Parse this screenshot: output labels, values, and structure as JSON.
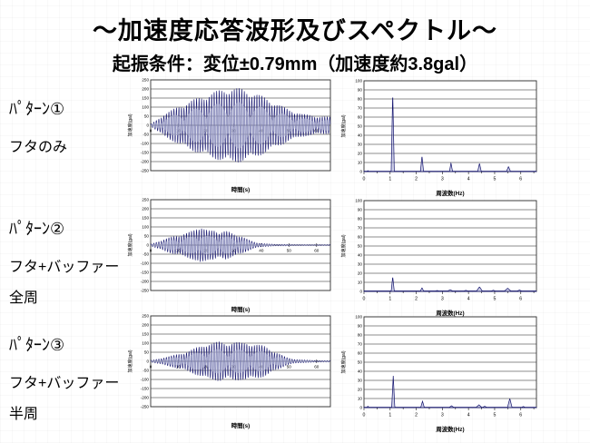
{
  "page": {
    "title": "～加速度応答波形及びスペクトル～",
    "subtitle": "起振条件：変位±0.79mm（加速度約3.8gal）"
  },
  "rows": [
    {
      "pattern": "ﾊﾟﾀｰﾝ①",
      "lines": [
        "フタのみ"
      ]
    },
    {
      "pattern": "ﾊﾟﾀｰﾝ②",
      "lines": [
        "フタ+バッファー",
        "全周"
      ]
    },
    {
      "pattern": "ﾊﾟﾀｰﾝ③",
      "lines": [
        "フタ+バッファー",
        "半周"
      ]
    }
  ],
  "colors": {
    "series_stroke": "#14146e",
    "series_fill": "#9da2cf",
    "inner_fill": "#bcbfdd",
    "grid": "#666666",
    "axis": "#333333",
    "text": "#000000"
  },
  "chart_data": [
    {
      "type": "line",
      "kind": "waveform",
      "row": 1,
      "title": "",
      "xlabel": "時間(s)",
      "ylabel": "加速度(gal)",
      "xlim": [
        0,
        65
      ],
      "ylim": [
        -250,
        250
      ],
      "xticks": [
        0,
        10,
        20,
        30,
        40,
        50,
        60
      ],
      "yticks": [
        -250,
        -200,
        -150,
        -100,
        -50,
        0,
        50,
        100,
        150,
        200,
        250
      ],
      "grid": "horizontal",
      "carrier_freq_hz": 1.1,
      "beat_period_s": 8,
      "envelope_gal": [
        [
          0,
          5
        ],
        [
          5,
          62
        ],
        [
          10,
          105
        ],
        [
          15,
          140
        ],
        [
          20,
          170
        ],
        [
          25,
          196
        ],
        [
          29,
          210
        ],
        [
          33,
          203
        ],
        [
          37,
          183
        ],
        [
          41,
          158
        ],
        [
          45,
          125
        ],
        [
          50,
          88
        ],
        [
          55,
          62
        ],
        [
          60,
          50
        ],
        [
          65,
          45
        ]
      ]
    },
    {
      "type": "line",
      "kind": "spectrum",
      "row": 1,
      "title": "",
      "xlabel": "周波数(Hz)",
      "ylabel": "加速度(gal)",
      "xlim": [
        0,
        6.6
      ],
      "ylim": [
        0,
        100
      ],
      "xticks": [
        0,
        1,
        2,
        3,
        4,
        5,
        6
      ],
      "yticks": [
        0,
        10,
        20,
        30,
        40,
        50,
        60,
        70,
        80,
        90,
        100
      ],
      "grid": "horizontal",
      "baseline": 0.4,
      "peaks_hz_gal_width": [
        [
          0.15,
          1,
          0.05
        ],
        [
          1.1,
          87,
          0.06
        ],
        [
          2.22,
          17,
          0.06
        ],
        [
          3.33,
          9.5,
          0.06
        ],
        [
          4.42,
          9,
          0.07
        ],
        [
          5.53,
          5.5,
          0.08
        ]
      ]
    },
    {
      "type": "line",
      "kind": "waveform",
      "row": 2,
      "title": "",
      "xlabel": "時間(s)",
      "ylabel": "加速度(gal)",
      "xlim": [
        0,
        65
      ],
      "ylim": [
        -250,
        250
      ],
      "xticks": [
        0,
        10,
        20,
        30,
        40,
        50,
        60
      ],
      "yticks": [
        -250,
        -200,
        -150,
        -100,
        -50,
        0,
        50,
        100,
        150,
        200,
        250
      ],
      "grid": "horizontal",
      "carrier_freq_hz": 1.1,
      "beat_period_s": 7,
      "envelope_gal": [
        [
          0,
          4
        ],
        [
          3,
          22
        ],
        [
          6,
          38
        ],
        [
          9,
          52
        ],
        [
          12,
          62
        ],
        [
          15,
          78
        ],
        [
          17,
          100
        ],
        [
          18,
          110
        ],
        [
          19,
          95
        ],
        [
          21,
          78
        ],
        [
          23,
          85
        ],
        [
          25,
          72
        ],
        [
          27,
          80
        ],
        [
          29,
          68
        ],
        [
          31,
          58
        ],
        [
          33,
          48
        ],
        [
          35,
          32
        ],
        [
          37,
          20
        ],
        [
          39,
          12
        ],
        [
          41,
          8
        ],
        [
          45,
          5
        ],
        [
          50,
          4
        ],
        [
          55,
          3
        ],
        [
          60,
          3
        ],
        [
          65,
          3
        ]
      ]
    },
    {
      "type": "line",
      "kind": "spectrum",
      "row": 2,
      "title": "",
      "xlabel": "周波数(Hz)",
      "ylabel": "加速度(gal)",
      "xlim": [
        0,
        6.6
      ],
      "ylim": [
        0,
        100
      ],
      "xticks": [
        0,
        1,
        2,
        3,
        4,
        5,
        6
      ],
      "yticks": [
        0,
        10,
        20,
        30,
        40,
        50,
        60,
        70,
        80,
        90,
        100
      ],
      "grid": "horizontal",
      "baseline": 0.5,
      "peaks_hz_gal_width": [
        [
          1.1,
          16,
          0.06
        ],
        [
          2.22,
          4,
          0.07
        ],
        [
          2.8,
          1,
          0.12
        ],
        [
          3.3,
          1.8,
          0.12
        ],
        [
          3.9,
          1.2,
          0.12
        ],
        [
          4.42,
          5,
          0.12
        ],
        [
          4.95,
          1.3,
          0.12
        ],
        [
          5.5,
          3.5,
          0.14
        ],
        [
          5.95,
          1.5,
          0.12
        ]
      ]
    },
    {
      "type": "line",
      "kind": "waveform",
      "row": 3,
      "title": "",
      "xlabel": "時間(s)",
      "ylabel": "加速度(gal)",
      "xlim": [
        0,
        65
      ],
      "ylim": [
        -250,
        250
      ],
      "xticks": [
        0,
        10,
        20,
        30,
        40,
        50,
        60
      ],
      "yticks": [
        -250,
        -200,
        -150,
        -100,
        -50,
        0,
        50,
        100,
        150,
        200,
        250
      ],
      "grid": "horizontal",
      "carrier_freq_hz": 1.1,
      "beat_period_s": 8,
      "envelope_gal": [
        [
          0,
          4
        ],
        [
          4,
          18
        ],
        [
          8,
          32
        ],
        [
          12,
          48
        ],
        [
          14,
          58
        ],
        [
          16,
          72
        ],
        [
          18,
          85
        ],
        [
          20,
          98
        ],
        [
          23,
          104
        ],
        [
          25,
          110
        ],
        [
          28,
          100
        ],
        [
          30,
          108
        ],
        [
          33,
          103
        ],
        [
          35,
          106
        ],
        [
          37,
          96
        ],
        [
          39,
          92
        ],
        [
          41,
          86
        ],
        [
          43,
          70
        ],
        [
          45,
          52
        ],
        [
          47,
          38
        ],
        [
          49,
          22
        ],
        [
          51,
          14
        ],
        [
          53,
          10
        ],
        [
          56,
          7
        ],
        [
          60,
          5
        ],
        [
          65,
          4
        ]
      ]
    },
    {
      "type": "line",
      "kind": "spectrum",
      "row": 3,
      "title": "",
      "xlabel": "周波数(Hz)",
      "ylabel": "加速度(gal)",
      "xlim": [
        0,
        6.6
      ],
      "ylim": [
        0,
        100
      ],
      "xticks": [
        0,
        1,
        2,
        3,
        4,
        5,
        6
      ],
      "yticks": [
        0,
        10,
        20,
        30,
        40,
        50,
        60,
        70,
        80,
        90,
        100
      ],
      "grid": "horizontal",
      "baseline": 0.4,
      "peaks_hz_gal_width": [
        [
          0.15,
          1.5,
          0.05
        ],
        [
          1.12,
          35,
          0.06
        ],
        [
          2.24,
          7,
          0.07
        ],
        [
          3.35,
          2,
          0.1
        ],
        [
          4.4,
          3,
          0.12
        ],
        [
          4.62,
          1.5,
          0.1
        ],
        [
          5.58,
          10,
          0.09
        ],
        [
          6.1,
          1.2,
          0.1
        ]
      ]
    }
  ]
}
